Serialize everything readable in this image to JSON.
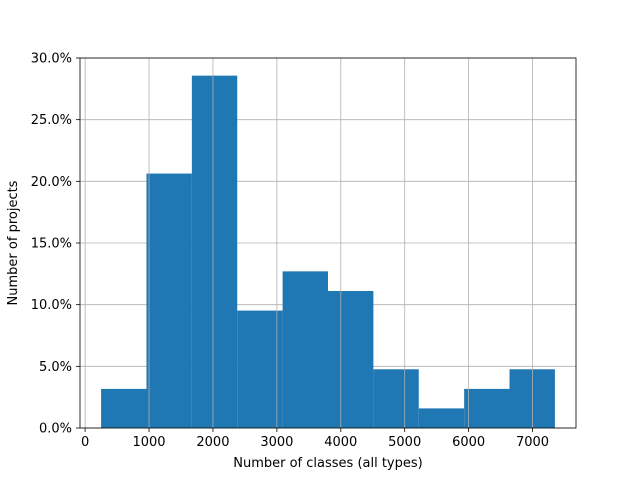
{
  "chart_data": {
    "type": "bar",
    "title": "",
    "xlabel": "Number of classes (all types)",
    "ylabel": "Number of projects",
    "bins": [
      {
        "x0": 250,
        "x1": 960,
        "value": 3.17
      },
      {
        "x0": 960,
        "x1": 1670,
        "value": 20.63
      },
      {
        "x0": 1670,
        "x1": 2380,
        "value": 28.57
      },
      {
        "x0": 2380,
        "x1": 3090,
        "value": 9.52
      },
      {
        "x0": 3090,
        "x1": 3800,
        "value": 12.7
      },
      {
        "x0": 3800,
        "x1": 4510,
        "value": 11.11
      },
      {
        "x0": 4510,
        "x1": 5220,
        "value": 4.76
      },
      {
        "x0": 5220,
        "x1": 5930,
        "value": 1.59
      },
      {
        "x0": 5930,
        "x1": 6640,
        "value": 3.17
      },
      {
        "x0": 6640,
        "x1": 7350,
        "value": 4.76
      }
    ],
    "xlim": [
      -80,
      7680
    ],
    "ylim": [
      0,
      30
    ],
    "xticks": [
      {
        "value": 0,
        "label": "0"
      },
      {
        "value": 1000,
        "label": "1000"
      },
      {
        "value": 2000,
        "label": "2000"
      },
      {
        "value": 3000,
        "label": "3000"
      },
      {
        "value": 4000,
        "label": "4000"
      },
      {
        "value": 5000,
        "label": "5000"
      },
      {
        "value": 6000,
        "label": "6000"
      },
      {
        "value": 7000,
        "label": "7000"
      }
    ],
    "yticks": [
      {
        "value": 0,
        "label": "0.0%"
      },
      {
        "value": 5,
        "label": "5.0%"
      },
      {
        "value": 10,
        "label": "10.0%"
      },
      {
        "value": 15,
        "label": "15.0%"
      },
      {
        "value": 20,
        "label": "20.0%"
      },
      {
        "value": 25,
        "label": "25.0%"
      },
      {
        "value": 30,
        "label": "30.0%"
      }
    ],
    "grid": true,
    "bar_color": "#1f77b4",
    "grid_color": "#b0b0b0"
  }
}
